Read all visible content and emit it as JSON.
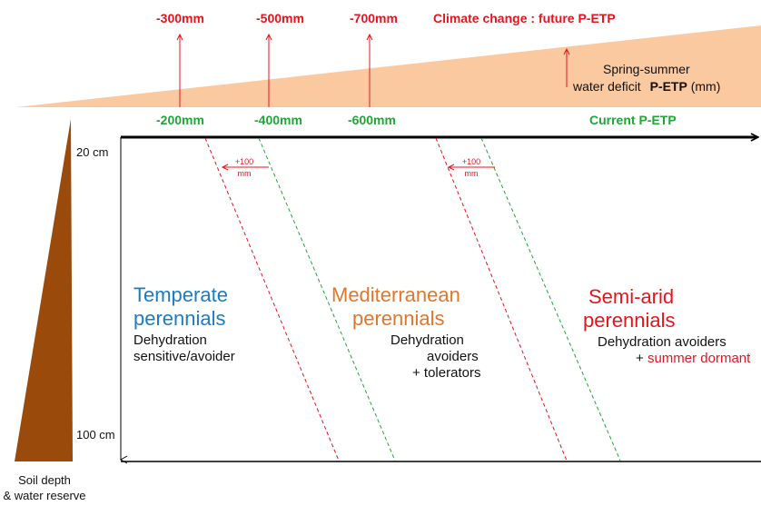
{
  "future_petp": {
    "values": [
      "-300mm",
      "-500mm",
      "-700mm"
    ],
    "title": "Climate change : future P-ETP"
  },
  "current_petp": {
    "values": [
      "-200mm",
      "-400mm",
      "-600mm"
    ],
    "title": "Current P-ETP"
  },
  "deficit_label": {
    "line1": "Spring-summer",
    "line2_prefix": "water deficit",
    "line2_bold": "P-ETP",
    "line2_suffix": "(mm)"
  },
  "shift_label": {
    "line1": "+100",
    "line2": "mm"
  },
  "depth_axis": {
    "top": "20 cm",
    "bottom": "100 cm",
    "caption_line1": "Soil depth",
    "caption_line2": "& water reserve"
  },
  "groups": {
    "temperate": {
      "name_line1": "Temperate",
      "name_line2": "perennials",
      "desc_line1": "Dehydration",
      "desc_line2": "sensitive/avoider"
    },
    "mediterranean": {
      "name_line1": "Mediterranean",
      "name_line2": "perennials",
      "desc_line1": "Dehydration",
      "desc_line2": "avoiders",
      "desc_line3": "+ tolerators"
    },
    "semiarid": {
      "name_line1": "Semi-arid",
      "name_line2": "perennials",
      "desc_line1": "Dehydration avoiders",
      "desc_line2_prefix": "+",
      "desc_line2_red": "summer dormant"
    }
  },
  "colors": {
    "future": "#e8141b",
    "current": "#1fa637",
    "wedge": "#fbc9a0",
    "soil": "#9a4a0b",
    "temperate": "#1a7cc4",
    "mediterranean": "#e2762a",
    "semiarid": "#e8141b"
  }
}
